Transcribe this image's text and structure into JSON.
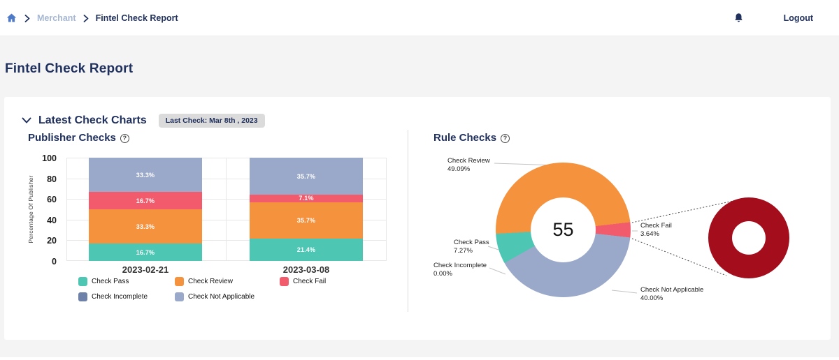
{
  "topbar": {
    "breadcrumb": {
      "items": [
        {
          "label": "Merchant"
        },
        {
          "label": "Fintel Check Report"
        }
      ]
    },
    "logout_label": "Logout"
  },
  "page": {
    "title": "Fintel Check Report"
  },
  "panel": {
    "title": "Latest Check Charts",
    "last_check_badge": "Last Check: Mar 8th , 2023"
  },
  "icons": {
    "help_glyph": "?"
  },
  "colors": {
    "navy": "#21315E",
    "check_pass": "#4DC6B4",
    "check_review": "#F5923E",
    "check_fail": "#F15B6C",
    "check_incomplete": "#6E81A8",
    "check_not_applicable": "#9AA9C9",
    "zoomed_fail_red": "#A30D1C"
  },
  "chart_data": [
    {
      "type": "bar",
      "stacked": true,
      "title": "Publisher Checks",
      "ylabel": "Percentage Of Publisher",
      "ylim": [
        0,
        100
      ],
      "yticks": [
        0,
        20,
        40,
        60,
        80,
        100
      ],
      "grid": true,
      "categories": [
        "2023-02-21",
        "2023-03-08"
      ],
      "series": [
        {
          "name": "Check Pass",
          "color": "#4DC6B4",
          "values": [
            16.7,
            21.4
          ]
        },
        {
          "name": "Check Review",
          "color": "#F5923E",
          "values": [
            33.3,
            35.7
          ]
        },
        {
          "name": "Check Fail",
          "color": "#F15B6C",
          "values": [
            16.7,
            7.1
          ]
        },
        {
          "name": "Check Not Applicable",
          "color": "#9AA9C9",
          "values": [
            33.3,
            35.7
          ]
        }
      ],
      "legend": [
        {
          "label": "Check Pass",
          "color": "#4DC6B4"
        },
        {
          "label": "Check Review",
          "color": "#F5923E"
        },
        {
          "label": "Check Fail",
          "color": "#F15B6C"
        },
        {
          "label": "Check Incomplete",
          "color": "#6E81A8"
        },
        {
          "label": "Check Not Applicable",
          "color": "#9AA9C9"
        }
      ],
      "legend_position": "bottom"
    },
    {
      "type": "pie",
      "donut": true,
      "title": "Rule Checks",
      "center_value": "55",
      "start_angle_deg": 240.5,
      "segments": [
        {
          "label": "Check Pass",
          "pct": 7.27,
          "color": "#4DC6B4"
        },
        {
          "label": "Check Review",
          "pct": 49.09,
          "color": "#F5923E"
        },
        {
          "label": "Check Fail",
          "pct": 3.64,
          "color": "#F15B6C"
        },
        {
          "label": "Check Not Applicable",
          "pct": 40.0,
          "color": "#9AA9C9"
        },
        {
          "label": "Check Incomplete",
          "pct": 0.0,
          "color": "#6E81A8"
        }
      ],
      "zoomed_segment": {
        "label": "Check Fail",
        "color": "#A30D1C"
      }
    }
  ]
}
